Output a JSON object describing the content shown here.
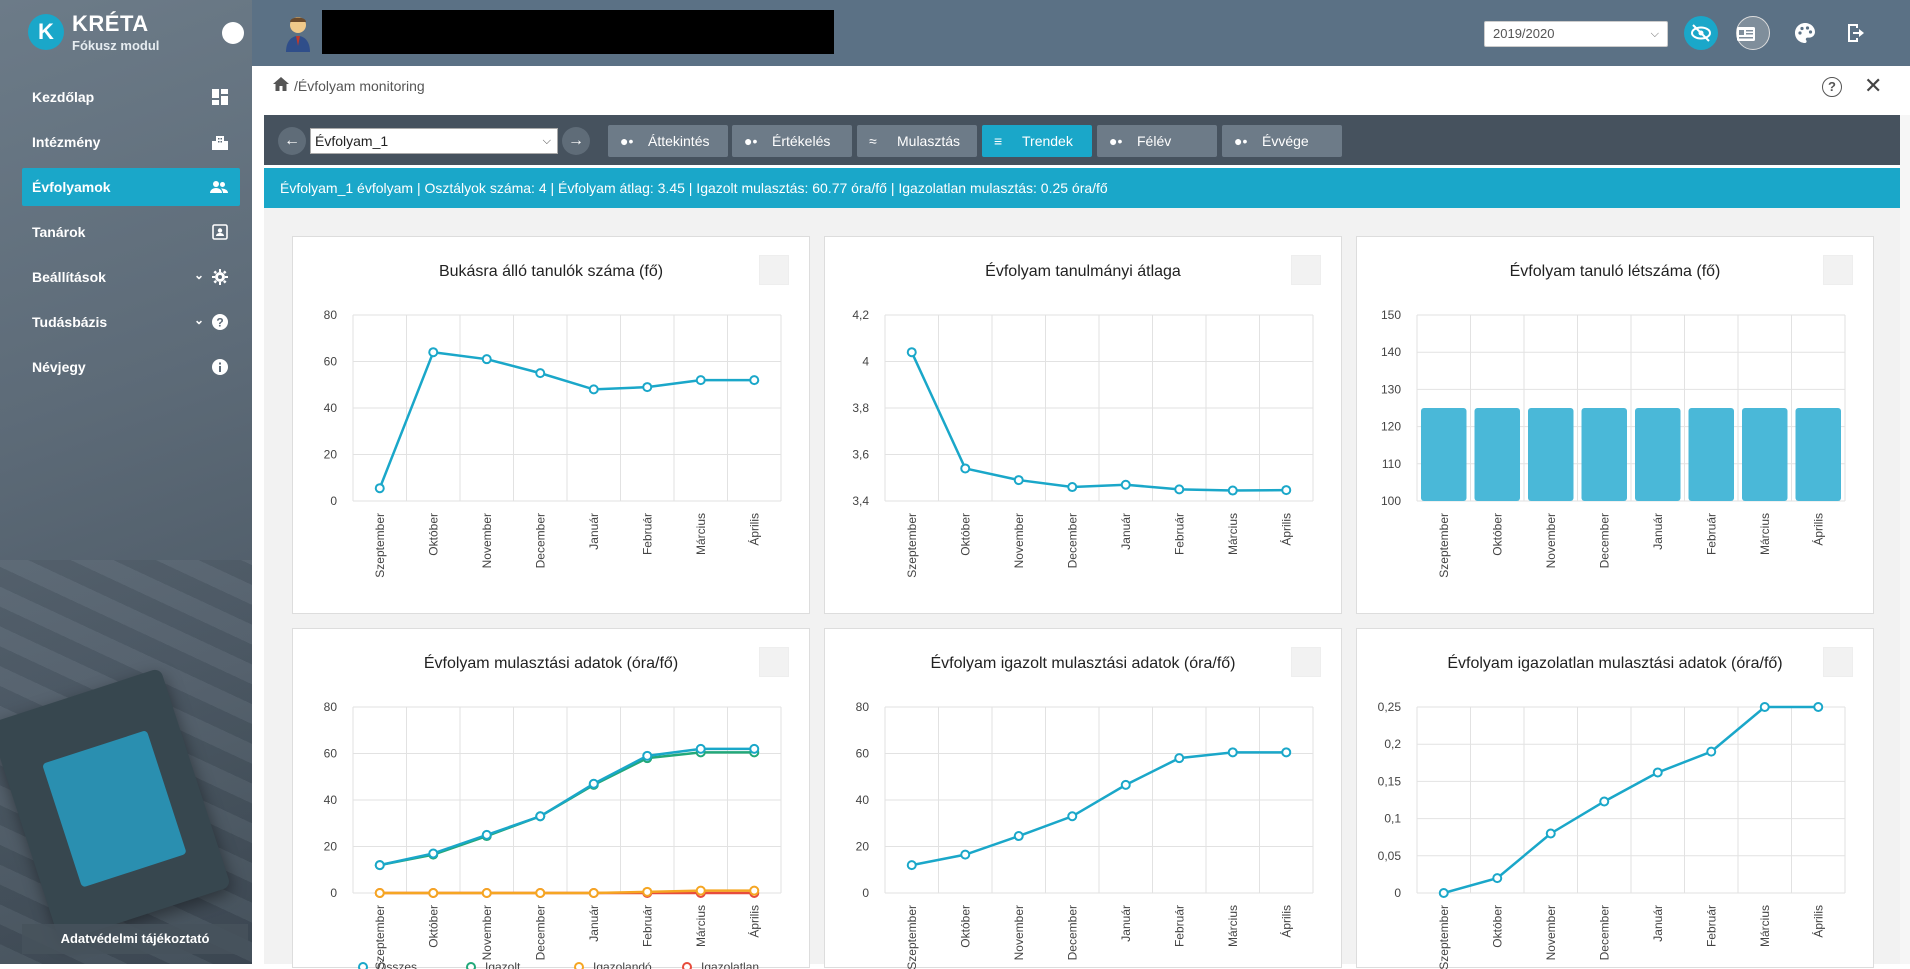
{
  "app": {
    "name": "KRÉTA",
    "module": "Fókusz modul",
    "logo_letter": "K",
    "accent": "#1aa7c9"
  },
  "sidebar": {
    "items": [
      {
        "label": "Kezdőlap",
        "icon": "dashboard-icon"
      },
      {
        "label": "Intézmény",
        "icon": "building-icon"
      },
      {
        "label": "Évfolyamok",
        "icon": "people-icon",
        "active": true
      },
      {
        "label": "Tanárok",
        "icon": "contact-card-icon"
      },
      {
        "label": "Beállítások",
        "icon": "gear-icon",
        "expandable": true
      },
      {
        "label": "Tudásbázis",
        "icon": "help-icon",
        "expandable": true
      },
      {
        "label": "Névjegy",
        "icon": "info-icon"
      }
    ],
    "privacy_label": "Adatvédelmi tájékoztató"
  },
  "header": {
    "school_year": "2019/2020"
  },
  "breadcrumb": {
    "text": "/Évfolyam monitoring"
  },
  "toolbar": {
    "grade_value": "Évfolyam_1",
    "tabs": [
      {
        "label": "Áttekintés"
      },
      {
        "label": "Értékelés"
      },
      {
        "label": "Mulasztás"
      },
      {
        "label": "Trendek",
        "active": true
      },
      {
        "label": "Félév"
      },
      {
        "label": "Évvége"
      }
    ]
  },
  "info": {
    "text": "Évfolyam_1 évfolyam | Osztályok száma: 4 | Évfolyam átlag: 3.45 | Igazolt mulasztás: 60.77 óra/fő | Igazolatlan mulasztás: 0.25 óra/fő"
  },
  "chart_data": [
    {
      "type": "line",
      "title": "Bukásra álló tanulók száma (fő)",
      "categories": [
        "Szeptember",
        "Október",
        "November",
        "December",
        "Január",
        "Február",
        "Március",
        "Április"
      ],
      "yticks": [
        "0",
        "20",
        "40",
        "60",
        "80"
      ],
      "ylim": [
        0,
        80
      ],
      "series": [
        {
          "color": "#1aa7c9",
          "values": [
            5.5,
            64,
            61,
            55,
            48,
            49,
            52,
            52
          ]
        }
      ],
      "grid": true
    },
    {
      "type": "line",
      "title": "Évfolyam tanulmányi átlaga",
      "categories": [
        "Szeptember",
        "Október",
        "November",
        "December",
        "Január",
        "Február",
        "Március",
        "Április"
      ],
      "yticks": [
        "3,4",
        "3,6",
        "3,8",
        "4",
        "4,2"
      ],
      "ylim": [
        3.4,
        4.2
      ],
      "series": [
        {
          "color": "#1aa7c9",
          "values": [
            4.04,
            3.54,
            3.49,
            3.46,
            3.47,
            3.45,
            3.445,
            3.447
          ]
        }
      ],
      "grid": true
    },
    {
      "type": "bar",
      "title": "Évfolyam tanuló létszáma (fő)",
      "categories": [
        "Szeptember",
        "Október",
        "November",
        "December",
        "Január",
        "Február",
        "Március",
        "Április"
      ],
      "yticks": [
        "100",
        "110",
        "120",
        "130",
        "140",
        "150"
      ],
      "ylim": [
        100,
        150
      ],
      "series": [
        {
          "color": "#4ab8d8",
          "values": [
            125,
            125,
            125,
            125,
            125,
            125,
            125,
            125
          ]
        }
      ],
      "grid": true
    },
    {
      "type": "line",
      "title": "Évfolyam mulasztási adatok (óra/fő)",
      "categories": [
        "Szeptember",
        "Október",
        "November",
        "December",
        "Január",
        "Február",
        "Március",
        "Április"
      ],
      "yticks": [
        "0",
        "20",
        "40",
        "60",
        "80"
      ],
      "ylim": [
        0,
        80
      ],
      "legend": [
        "Összes",
        "Igazolt",
        "Igazolandó",
        "Igazolatlan"
      ],
      "series": [
        {
          "name": "Összes",
          "color": "#1aa7c9",
          "values": [
            12,
            17,
            25,
            33,
            47,
            59,
            62,
            62
          ]
        },
        {
          "name": "Igazolt",
          "color": "#22a87a",
          "values": [
            12,
            16.5,
            24.5,
            33,
            46.5,
            58,
            60.5,
            60.5
          ]
        },
        {
          "name": "Igazolandó",
          "color": "#f5a623",
          "values": [
            0,
            0,
            0,
            0,
            0,
            0.5,
            1,
            1
          ]
        },
        {
          "name": "Igazolatlan",
          "color": "#e74c3c",
          "values": [
            0,
            0,
            0,
            0,
            0,
            0,
            0,
            0
          ]
        }
      ],
      "grid": true
    },
    {
      "type": "line",
      "title": "Évfolyam igazolt mulasztási adatok (óra/fő)",
      "categories": [
        "Szeptember",
        "Október",
        "November",
        "December",
        "Január",
        "Február",
        "Március",
        "Április"
      ],
      "yticks": [
        "0",
        "20",
        "40",
        "60",
        "80"
      ],
      "ylim": [
        0,
        80
      ],
      "series": [
        {
          "color": "#1aa7c9",
          "values": [
            12,
            16.5,
            24.5,
            33,
            46.5,
            58,
            60.5,
            60.5
          ]
        }
      ],
      "grid": true
    },
    {
      "type": "line",
      "title": "Évfolyam igazolatlan mulasztási adatok (óra/fő)",
      "categories": [
        "Szeptember",
        "Október",
        "November",
        "December",
        "Január",
        "Február",
        "Március",
        "Április"
      ],
      "yticks": [
        "0",
        "0,05",
        "0,1",
        "0,15",
        "0,2",
        "0,25"
      ],
      "ylim": [
        0,
        0.25
      ],
      "series": [
        {
          "color": "#1aa7c9",
          "values": [
            0,
            0.02,
            0.08,
            0.123,
            0.162,
            0.19,
            0.25,
            0.25
          ]
        }
      ],
      "grid": true
    }
  ]
}
